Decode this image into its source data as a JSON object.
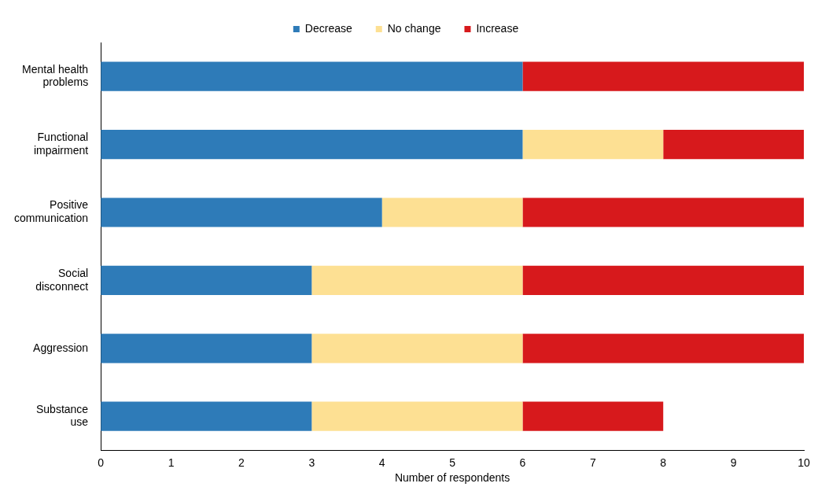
{
  "chart_data": {
    "type": "bar",
    "orientation": "horizontal",
    "stacked": true,
    "categories": [
      "Mental health problems",
      "Functional impairment",
      "Positive communication",
      "Social disconnect",
      "Aggression",
      "Substance use"
    ],
    "series": [
      {
        "name": "Decrease",
        "color": "#2e7bb8",
        "values": [
          6,
          6,
          4,
          3,
          3,
          3
        ]
      },
      {
        "name": "No change",
        "color": "#fde093",
        "values": [
          0,
          2,
          2,
          3,
          3,
          3
        ]
      },
      {
        "name": "Increase",
        "color": "#d7191c",
        "values": [
          4,
          2,
          4,
          4,
          4,
          2
        ]
      }
    ],
    "xlabel": "Number of respondents",
    "xlim": [
      0,
      10
    ],
    "xticks": [
      0,
      1,
      2,
      3,
      4,
      5,
      6,
      7,
      8,
      9,
      10
    ],
    "grid": false,
    "legend": "top"
  }
}
